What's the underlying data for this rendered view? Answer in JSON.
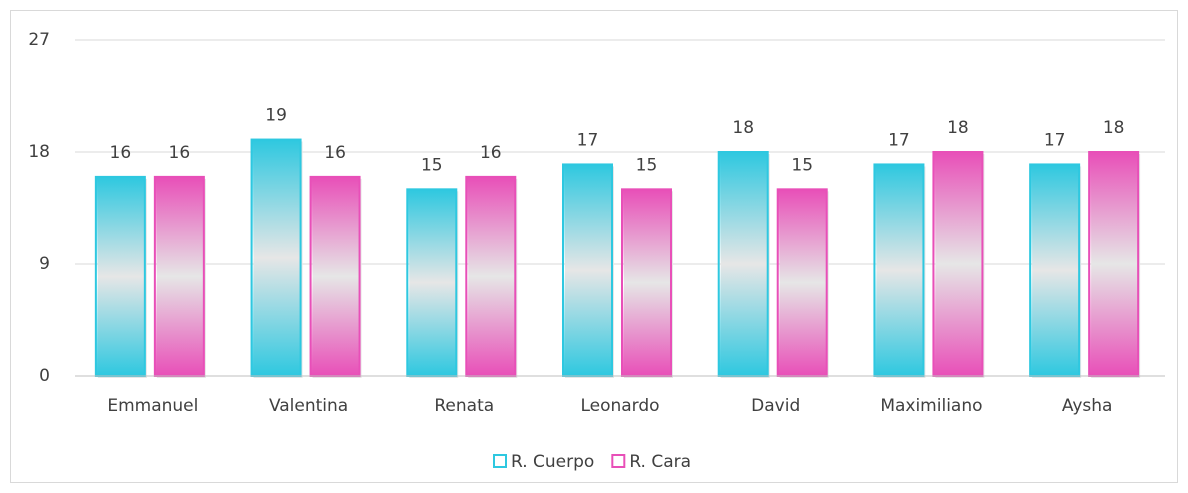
{
  "chart_data": {
    "type": "bar",
    "categories": [
      "Emmanuel",
      "Valentina",
      "Renata",
      "Leonardo",
      "David",
      "Maximiliano",
      "Aysha"
    ],
    "series": [
      {
        "name": "R. Cuerpo",
        "color": "#2ec8e0",
        "values": [
          16,
          19,
          15,
          17,
          18,
          17,
          17
        ]
      },
      {
        "name": "R. Cara",
        "color": "#e84fb8",
        "values": [
          16,
          16,
          16,
          15,
          15,
          18,
          18
        ]
      }
    ],
    "ylim": [
      0,
      27
    ],
    "yticks": [
      0,
      9,
      18,
      27
    ],
    "grid": true,
    "legend": "bottom"
  }
}
